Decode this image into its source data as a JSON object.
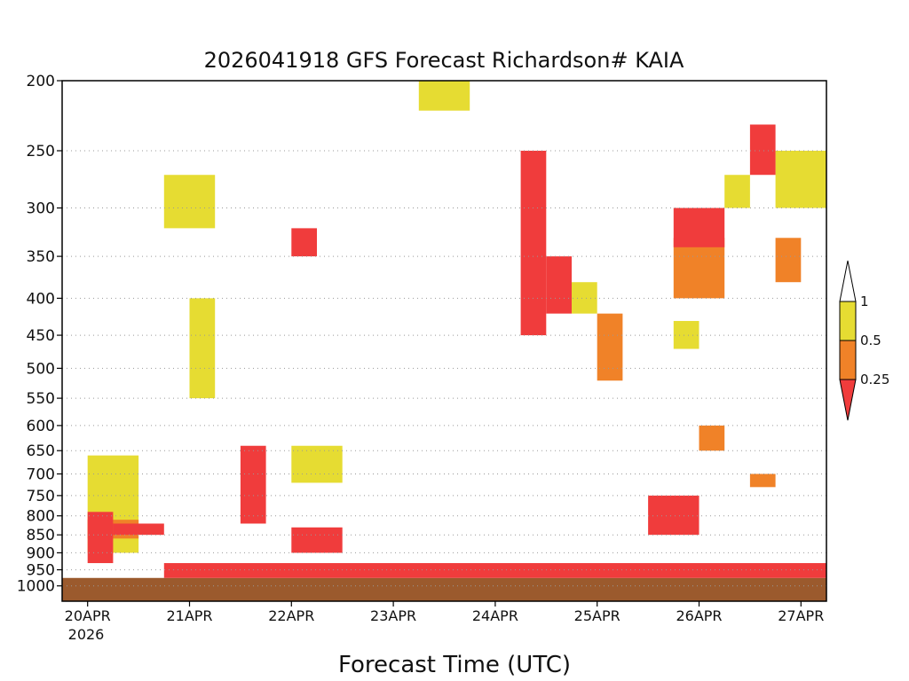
{
  "chart_data": {
    "type": "heatmap",
    "title": "2026041918 GFS Forecast Richardson# KAIA",
    "xlabel": "Forecast Time (UTC)",
    "ylabel": "",
    "y_scale": "log-pressure, inverted",
    "ylim": [
      1000,
      200
    ],
    "y_ticks": [
      200,
      250,
      300,
      350,
      400,
      450,
      500,
      550,
      600,
      650,
      700,
      750,
      800,
      850,
      900,
      950,
      1000
    ],
    "x_ticks": [
      "20APR",
      "21APR",
      "22APR",
      "23APR",
      "24APR",
      "25APR",
      "26APR",
      "27APR"
    ],
    "x_year_label": "2026",
    "xlim": [
      "2026-04-19T18:00Z",
      "2026-04-27T06:00Z"
    ],
    "grid": true,
    "legend": {
      "placement": "right",
      "labels": [
        "1",
        "0.5",
        "0.25"
      ],
      "bins": [
        {
          "range": "< 0.25",
          "color": "#f03c3c"
        },
        {
          "range": "0.25 - 0.5",
          "color": "#f08228"
        },
        {
          "range": "0.5 - 1",
          "color": "#e6dc32"
        },
        {
          "range": ">= 1",
          "color": "#ffffff"
        }
      ]
    },
    "ground_color": "#9b5a2d",
    "series": [
      {
        "color": "#f03c3c",
        "regions": [
          {
            "t": [
              "20APR 00Z",
              "20APR 06Z"
            ],
            "p": [
              930,
              790
            ]
          },
          {
            "t": [
              "20APR 06Z",
              "20APR 18Z"
            ],
            "p": [
              850,
              820
            ]
          },
          {
            "t": [
              "20APR 18Z",
              "27APR 06Z"
            ],
            "p": [
              975,
              930
            ]
          },
          {
            "t": [
              "21APR 12Z",
              "21APR 18Z"
            ],
            "p": [
              820,
              640
            ]
          },
          {
            "t": [
              "22APR 00Z",
              "22APR 12Z"
            ],
            "p": [
              900,
              830
            ]
          },
          {
            "t": [
              "24APR 06Z",
              "24APR 12Z"
            ],
            "p": [
              450,
              250
            ]
          },
          {
            "t": [
              "24APR 12Z",
              "24APR 18Z"
            ],
            "p": [
              420,
              350
            ]
          },
          {
            "t": [
              "25APR 12Z",
              "26APR 00Z"
            ],
            "p": [
              850,
              750
            ]
          },
          {
            "t": [
              "25APR 18Z",
              "26APR 06Z"
            ],
            "p": [
              340,
              300
            ]
          },
          {
            "t": [
              "26APR 12Z",
              "26APR 18Z"
            ],
            "p": [
              270,
              230
            ]
          },
          {
            "t": [
              "22APR 00Z",
              "22APR 06Z"
            ],
            "p": [
              350,
              320
            ]
          }
        ]
      },
      {
        "color": "#f08228",
        "regions": [
          {
            "t": [
              "20APR 00Z",
              "20APR 12Z"
            ],
            "p": [
              860,
              810
            ]
          },
          {
            "t": [
              "25APR 18Z",
              "26APR 06Z"
            ],
            "p": [
              400,
              330
            ]
          },
          {
            "t": [
              "26APR 18Z",
              "27APR 00Z"
            ],
            "p": [
              380,
              330
            ]
          },
          {
            "t": [
              "25APR 00Z",
              "25APR 06Z"
            ],
            "p": [
              520,
              420
            ]
          },
          {
            "t": [
              "26APR 00Z",
              "26APR 06Z"
            ],
            "p": [
              650,
              600
            ]
          },
          {
            "t": [
              "26APR 12Z",
              "26APR 18Z"
            ],
            "p": [
              730,
              700
            ]
          }
        ]
      },
      {
        "color": "#e6dc32",
        "regions": [
          {
            "t": [
              "20APR 00Z",
              "20APR 12Z"
            ],
            "p": [
              900,
              660
            ]
          },
          {
            "t": [
              "20APR 18Z",
              "21APR 06Z"
            ],
            "p": [
              320,
              270
            ]
          },
          {
            "t": [
              "21APR 00Z",
              "21APR 06Z"
            ],
            "p": [
              550,
              400
            ]
          },
          {
            "t": [
              "22APR 00Z",
              "22APR 12Z"
            ],
            "p": [
              720,
              640
            ]
          },
          {
            "t": [
              "23APR 06Z",
              "23APR 18Z"
            ],
            "p": [
              220,
              200
            ]
          },
          {
            "t": [
              "24APR 18Z",
              "25APR 00Z"
            ],
            "p": [
              420,
              380
            ]
          },
          {
            "t": [
              "25APR 18Z",
              "26APR 00Z"
            ],
            "p": [
              470,
              430
            ]
          },
          {
            "t": [
              "26APR 06Z",
              "26APR 12Z"
            ],
            "p": [
              300,
              270
            ]
          },
          {
            "t": [
              "26APR 18Z",
              "27APR 06Z"
            ],
            "p": [
              300,
              250
            ]
          }
        ]
      }
    ]
  }
}
